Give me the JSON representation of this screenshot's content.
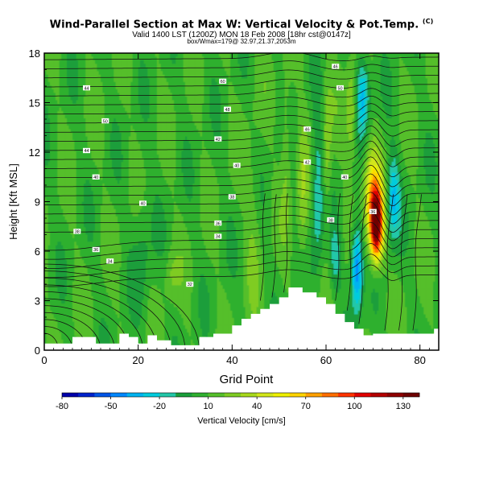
{
  "header": {
    "title": "Wind-Parallel Section at Max W: Vertical Velocity & Pot.Temp.",
    "title_mark": "(C)",
    "valid_line": "Valid 1400 LST (1200Z) MON 18 Feb 2008 [18hr cst@0147z]",
    "stats_line": "box/Wmax=179@ 32.97,21.37,2053m"
  },
  "chart_data": {
    "type": "heatmap",
    "title": "Wind-Parallel Section at Max W: Vertical Velocity & Pot.Temp.",
    "xlabel": "Grid Point",
    "ylabel": "Height [Kft MSL]",
    "xlim": [
      0,
      84
    ],
    "ylim": [
      0,
      18
    ],
    "xticks": [
      0,
      20,
      40,
      60,
      80
    ],
    "yticks": [
      0,
      3,
      6,
      9,
      12,
      15,
      18
    ],
    "colorbar": {
      "label": "Vertical Velocity [cm/s]",
      "tick_labels": [
        "-80",
        "-50",
        "-20",
        "10",
        "40",
        "70",
        "100",
        "130"
      ],
      "tick_values": [
        -80,
        -50,
        -20,
        10,
        40,
        70,
        100,
        130
      ],
      "range": [
        -80,
        140
      ],
      "colors": [
        "#0000aa",
        "#0022cc",
        "#0055e6",
        "#0088ff",
        "#00b3f0",
        "#00ccdd",
        "#22c7a8",
        "#1a9e3a",
        "#2fb02f",
        "#55bf2a",
        "#7fcc22",
        "#a7d81c",
        "#d2e61a",
        "#eef000",
        "#ffd400",
        "#ffa000",
        "#ff6e00",
        "#ff3300",
        "#e00000",
        "#b40000",
        "#8e0000",
        "#6e0000"
      ]
    },
    "terrain": [
      [
        0,
        0.4
      ],
      [
        6,
        0.4
      ],
      [
        6,
        0.8
      ],
      [
        11,
        0.8
      ],
      [
        11,
        0.4
      ],
      [
        16,
        0.4
      ],
      [
        16,
        1.0
      ],
      [
        18,
        1.0
      ],
      [
        18,
        0.8
      ],
      [
        20,
        0.8
      ],
      [
        20,
        0.4
      ],
      [
        22,
        0.4
      ],
      [
        22,
        0.9
      ],
      [
        24,
        0.9
      ],
      [
        24,
        0.6
      ],
      [
        27,
        0.6
      ],
      [
        27,
        0.3
      ],
      [
        33,
        0.3
      ],
      [
        33,
        0.8
      ],
      [
        36,
        0.8
      ],
      [
        36,
        1.0
      ],
      [
        40,
        1.0
      ],
      [
        40,
        1.5
      ],
      [
        42,
        1.5
      ],
      [
        42,
        1.9
      ],
      [
        44,
        1.9
      ],
      [
        44,
        2.2
      ],
      [
        46,
        2.2
      ],
      [
        46,
        2.5
      ],
      [
        48,
        2.5
      ],
      [
        48,
        2.8
      ],
      [
        50,
        2.8
      ],
      [
        50,
        3.2
      ],
      [
        52,
        3.2
      ],
      [
        52,
        3.8
      ],
      [
        55,
        3.8
      ],
      [
        55,
        3.5
      ],
      [
        58,
        3.5
      ],
      [
        58,
        3.2
      ],
      [
        60,
        3.2
      ],
      [
        60,
        2.8
      ],
      [
        62,
        2.8
      ],
      [
        62,
        2.2
      ],
      [
        64,
        2.2
      ],
      [
        64,
        1.7
      ],
      [
        66,
        1.7
      ],
      [
        66,
        1.3
      ],
      [
        68,
        1.3
      ],
      [
        68,
        0.9
      ],
      [
        70,
        0.9
      ],
      [
        70,
        1.0
      ],
      [
        83,
        1.0
      ],
      [
        83,
        1.3
      ],
      [
        84,
        1.3
      ]
    ],
    "contour_labels": [
      {
        "x": 9,
        "y": 15.9,
        "text": "44"
      },
      {
        "x": 13,
        "y": 13.9,
        "text": "50"
      },
      {
        "x": 9,
        "y": 12.1,
        "text": "44"
      },
      {
        "x": 11,
        "y": 10.5,
        "text": "40"
      },
      {
        "x": 21,
        "y": 8.9,
        "text": "40"
      },
      {
        "x": 7,
        "y": 7.2,
        "text": "38"
      },
      {
        "x": 11,
        "y": 6.1,
        "text": "36"
      },
      {
        "x": 14,
        "y": 5.4,
        "text": "34"
      },
      {
        "x": 31,
        "y": 4.0,
        "text": "32"
      },
      {
        "x": 38,
        "y": 16.3,
        "text": "60"
      },
      {
        "x": 39,
        "y": 14.6,
        "text": "48"
      },
      {
        "x": 37,
        "y": 12.8,
        "text": "42"
      },
      {
        "x": 41,
        "y": 11.2,
        "text": "40"
      },
      {
        "x": 40,
        "y": 9.3,
        "text": "38"
      },
      {
        "x": 37,
        "y": 7.7,
        "text": "36"
      },
      {
        "x": 37,
        "y": 6.9,
        "text": "34"
      },
      {
        "x": 62,
        "y": 17.2,
        "text": "46"
      },
      {
        "x": 63,
        "y": 15.9,
        "text": "50"
      },
      {
        "x": 56,
        "y": 13.4,
        "text": "46"
      },
      {
        "x": 56,
        "y": 11.4,
        "text": "42"
      },
      {
        "x": 64,
        "y": 10.5,
        "text": "40"
      },
      {
        "x": 61,
        "y": 7.9,
        "text": "38"
      },
      {
        "x": 70,
        "y": 8.4,
        "text": "36"
      }
    ]
  }
}
